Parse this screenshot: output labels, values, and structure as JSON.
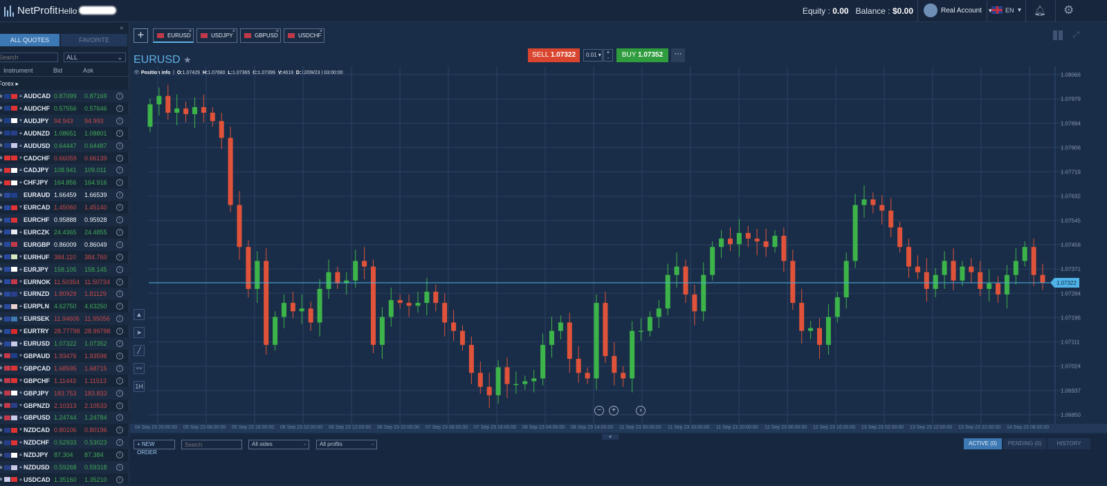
{
  "header": {
    "app_name": "NetProfit",
    "greeting": "Hello",
    "equity_label": "Equity :",
    "equity": "0.00",
    "balance_label": "Balance :",
    "balance": "$0.00",
    "account": "Real Account",
    "language": "EN"
  },
  "quotes": {
    "tabs": [
      "ALL QUOTES",
      "FAVORITE"
    ],
    "search_placeholder": "Search",
    "filter": "ALL",
    "columns": [
      "Instrument",
      "Bid",
      "Ask"
    ],
    "group": "Forex",
    "rows": [
      {
        "symbol": "AUDCAD",
        "bid": "0.87099",
        "ask": "0.87169",
        "dir": "g",
        "f": [
          "#1f3f8a",
          "#e03434"
        ]
      },
      {
        "symbol": "AUDCHF",
        "bid": "0.57556",
        "ask": "0.57646",
        "dir": "g",
        "f": [
          "#1f3f8a",
          "#e03434"
        ]
      },
      {
        "symbol": "AUDJPY",
        "bid": "94.943",
        "ask": "94.993",
        "dir": "r",
        "f": [
          "#1f3f8a",
          "#ffffff"
        ]
      },
      {
        "symbol": "AUDNZD",
        "bid": "1.08651",
        "ask": "1.08801",
        "dir": "g",
        "f": [
          "#1f3f8a",
          "#2a3f8a"
        ]
      },
      {
        "symbol": "AUDUSD",
        "bid": "0.64447",
        "ask": "0.64487",
        "dir": "g",
        "f": [
          "#1f3f8a",
          "#c9c9e8"
        ]
      },
      {
        "symbol": "CADCHF",
        "bid": "0.66059",
        "ask": "0.66139",
        "dir": "r",
        "f": [
          "#e03434",
          "#e03434"
        ]
      },
      {
        "symbol": "CADJPY",
        "bid": "108.941",
        "ask": "109.011",
        "dir": "g",
        "f": [
          "#e03434",
          "#ffffff"
        ]
      },
      {
        "symbol": "CHFJPY",
        "bid": "164.856",
        "ask": "164.916",
        "dir": "g",
        "f": [
          "#e03434",
          "#ffffff"
        ]
      },
      {
        "symbol": "EURAUD",
        "bid": "1.66459",
        "ask": "1.66539",
        "dir": "w",
        "f": [
          "#2a4aa0",
          "#1f3f8a"
        ]
      },
      {
        "symbol": "EURCAD",
        "bid": "1.45060",
        "ask": "1.45140",
        "dir": "r",
        "f": [
          "#2a4aa0",
          "#e03434"
        ]
      },
      {
        "symbol": "EURCHF",
        "bid": "0.95888",
        "ask": "0.95928",
        "dir": "w",
        "f": [
          "#2a4aa0",
          "#e03434"
        ]
      },
      {
        "symbol": "EURCZK",
        "bid": "24.4365",
        "ask": "24.4855",
        "dir": "g",
        "f": [
          "#2a4aa0",
          "#e8e8f0"
        ]
      },
      {
        "symbol": "EURGBP",
        "bid": "0.86009",
        "ask": "0.86049",
        "dir": "w",
        "f": [
          "#2a4aa0",
          "#c23a4a"
        ]
      },
      {
        "symbol": "EURHUF",
        "bid": "384.110",
        "ask": "384.760",
        "dir": "r",
        "f": [
          "#2a4aa0",
          "#d6e8c0"
        ]
      },
      {
        "symbol": "EURJPY",
        "bid": "158.105",
        "ask": "158.145",
        "dir": "g",
        "f": [
          "#2a4aa0",
          "#ffffff"
        ]
      },
      {
        "symbol": "EURNOK",
        "bid": "11.50354",
        "ask": "11.50734",
        "dir": "r",
        "f": [
          "#2a4aa0",
          "#c23a4a"
        ]
      },
      {
        "symbol": "EURNZD",
        "bid": "1.80929",
        "ask": "1.81129",
        "dir": "r",
        "f": [
          "#2a4aa0",
          "#2a3f8a"
        ]
      },
      {
        "symbol": "EURPLN",
        "bid": "4.62750",
        "ask": "4.63250",
        "dir": "g",
        "f": [
          "#2a4aa0",
          "#e8d0d0"
        ]
      },
      {
        "symbol": "EURSEK",
        "bid": "11.94606",
        "ask": "11.95056",
        "dir": "r",
        "f": [
          "#2a4aa0",
          "#3f7ab0"
        ]
      },
      {
        "symbol": "EURTRY",
        "bid": "28.77798",
        "ask": "28.99798",
        "dir": "r",
        "f": [
          "#2a4aa0",
          "#d92b2b"
        ]
      },
      {
        "symbol": "EURUSD",
        "bid": "1.07322",
        "ask": "1.07352",
        "dir": "g",
        "f": [
          "#2a4aa0",
          "#c9c9e8"
        ]
      },
      {
        "symbol": "GBPAUD",
        "bid": "1.93476",
        "ask": "1.93596",
        "dir": "r",
        "f": [
          "#c23a4a",
          "#1f3f8a"
        ]
      },
      {
        "symbol": "GBPCAD",
        "bid": "1.68595",
        "ask": "1.68715",
        "dir": "r",
        "f": [
          "#c23a4a",
          "#e03434"
        ]
      },
      {
        "symbol": "GBPCHF",
        "bid": "1.11443",
        "ask": "1.11513",
        "dir": "r",
        "f": [
          "#c23a4a",
          "#e03434"
        ]
      },
      {
        "symbol": "GBPJPY",
        "bid": "183.753",
        "ask": "183.833",
        "dir": "r",
        "f": [
          "#c23a4a",
          "#ffffff"
        ]
      },
      {
        "symbol": "GBPNZD",
        "bid": "2.10313",
        "ask": "2.10533",
        "dir": "r",
        "f": [
          "#c23a4a",
          "#2a3f8a"
        ]
      },
      {
        "symbol": "GBPUSD",
        "bid": "1.24744",
        "ask": "1.24784",
        "dir": "g",
        "f": [
          "#c23a4a",
          "#c9c9e8"
        ]
      },
      {
        "symbol": "NZDCAD",
        "bid": "0.80106",
        "ask": "0.80196",
        "dir": "r",
        "f": [
          "#2a3f8a",
          "#e03434"
        ]
      },
      {
        "symbol": "NZDCHF",
        "bid": "0.52933",
        "ask": "0.53023",
        "dir": "g",
        "f": [
          "#2a3f8a",
          "#e03434"
        ]
      },
      {
        "symbol": "NZDJPY",
        "bid": "87.304",
        "ask": "87.384",
        "dir": "g",
        "f": [
          "#2a3f8a",
          "#ffffff"
        ]
      },
      {
        "symbol": "NZDUSD",
        "bid": "0.59268",
        "ask": "0.59318",
        "dir": "g",
        "f": [
          "#2a3f8a",
          "#c9c9e8"
        ]
      },
      {
        "symbol": "USDCAD",
        "bid": "1.35160",
        "ask": "1.35210",
        "dir": "g",
        "f": [
          "#c9c9e8",
          "#e03434"
        ]
      }
    ]
  },
  "chart": {
    "tabs": [
      "EURUSD",
      "USDJPY",
      "GBPUSD",
      "USDCHF"
    ],
    "symbol": "EURUSD",
    "position_info": "Position info",
    "ohlc": {
      "o_label": "O:",
      "o": "1.07429",
      "h_label": "H:",
      "h": "1.07680",
      "l_label": "L:",
      "l": "1.07365",
      "c_label": "C:",
      "c": "1.07399",
      "v_label": "V:",
      "v": "4619",
      "d_label": "D:",
      "d": "12/09/23 | 03:00:00"
    },
    "sell_label": "SELL",
    "sell_price": "1.07322",
    "buy_label": "BUY",
    "buy_price": "1.07352",
    "quantity": "0.01"
  },
  "chart_data": {
    "type": "candlestick",
    "symbol": "EURUSD",
    "current_price": 1.07322,
    "ylim": [
      1.0685,
      1.08066
    ],
    "y_ticks": [
      "1.08066",
      "1.07979",
      "1.07894",
      "1.07806",
      "1.07719",
      "1.07632",
      "1.07545",
      "1.07458",
      "1.07371",
      "1.07284",
      "1.07196",
      "1.07111",
      "1.07024",
      "1.06937",
      "1.06850"
    ],
    "x_ticks": [
      "04 Sep 23 20:00:00",
      "05 Sep 23 08:00:00",
      "05 Sep 23 16:00:00",
      "06 Sep 23 02:00:00",
      "06 Sep 23 12:00:00",
      "06 Sep 23 22:00:00",
      "07 Sep 23 08:00:00",
      "07 Sep 23 18:00:00",
      "08 Sep 23 04:00:00",
      "08 Sep 23 14:00:00",
      "11 Sep 23 00:00:00",
      "11 Sep 23 10:00:00",
      "11 Sep 23 20:00:00",
      "12 Sep 23 06:00:00",
      "12 Sep 23 16:00:00",
      "13 Sep 23 02:00:00",
      "13 Sep 23 12:00:00",
      "13 Sep 23 22:00:00",
      "14 Sep 23 08:00:00"
    ],
    "first_open": 1.0788,
    "close": [
      1.0796,
      1.0799,
      1.0793,
      1.07945,
      1.07925,
      1.0795,
      1.0793,
      1.079,
      1.0784,
      1.076,
      1.0745,
      1.073,
      1.074,
      1.071,
      1.072,
      1.0725,
      1.0722,
      1.0723,
      1.0718,
      1.073,
      1.0736,
      1.0732,
      1.0733,
      1.074,
      1.0738,
      1.071,
      1.072,
      1.0726,
      1.0725,
      1.0724,
      1.0725,
      1.0729,
      1.0725,
      1.0718,
      1.0715,
      1.071,
      1.07,
      1.0695,
      1.0692,
      1.0702,
      1.0696,
      1.0696,
      1.0697,
      1.0698,
      1.071,
      1.0715,
      1.0718,
      1.0705,
      1.07,
      1.0698,
      1.0725,
      1.0706,
      1.07,
      1.0698,
      1.0715,
      1.0715,
      1.072,
      1.0723,
      1.0735,
      1.0738,
      1.0728,
      1.0722,
      1.0735,
      1.0745,
      1.0748,
      1.0746,
      1.075,
      1.0748,
      1.0747,
      1.0745,
      1.0749,
      1.074,
      1.0725,
      1.0715,
      1.0716,
      1.071,
      1.072,
      1.0727,
      1.074,
      1.076,
      1.0762,
      1.076,
      1.0758,
      1.0752,
      1.0745,
      1.0738,
      1.0736,
      1.073,
      1.0735,
      1.074,
      1.0733,
      1.0738,
      1.0736,
      1.073,
      1.0732,
      1.0728,
      1.0735,
      1.074,
      1.0745,
      1.0735,
      1.07322
    ]
  },
  "orders": {
    "new_order": "+ NEW ORDER",
    "search_placeholder": "Search",
    "sides": "All sides",
    "profits": "All profits",
    "tabs": [
      "ACTIVE (0)",
      "PENDING (0)",
      "HISTORY"
    ]
  },
  "colors": {
    "up": "#3cb44a",
    "down": "#e0533a",
    "accent": "#5fb0e6",
    "sell": "#d9452f",
    "buy": "#2f9c3d"
  }
}
